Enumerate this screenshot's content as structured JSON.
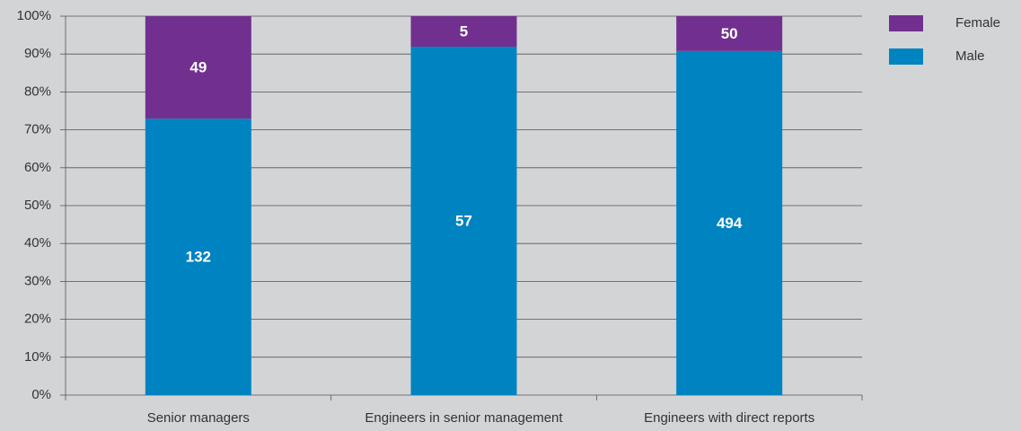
{
  "chart_data": {
    "type": "bar",
    "stacked": "percent",
    "categories": [
      "Senior managers",
      "Engineers in senior management",
      "Engineers with direct reports"
    ],
    "series": [
      {
        "name": "Male",
        "color": "#0083c1",
        "values": [
          132,
          57,
          494
        ]
      },
      {
        "name": "Female",
        "color": "#71308f",
        "values": [
          49,
          5,
          50
        ]
      }
    ],
    "ylim": [
      0,
      100
    ],
    "yticks": [
      {
        "value": 0,
        "label": "0%"
      },
      {
        "value": 10,
        "label": "10%"
      },
      {
        "value": 20,
        "label": "20%"
      },
      {
        "value": 30,
        "label": "30%"
      },
      {
        "value": 40,
        "label": "40%"
      },
      {
        "value": 50,
        "label": "50%"
      },
      {
        "value": 60,
        "label": "60%"
      },
      {
        "value": 70,
        "label": "70%"
      },
      {
        "value": 80,
        "label": "80%"
      },
      {
        "value": 90,
        "label": "90%"
      },
      {
        "value": 100,
        "label": "100%"
      }
    ],
    "grid": true,
    "legend": "top-right"
  }
}
